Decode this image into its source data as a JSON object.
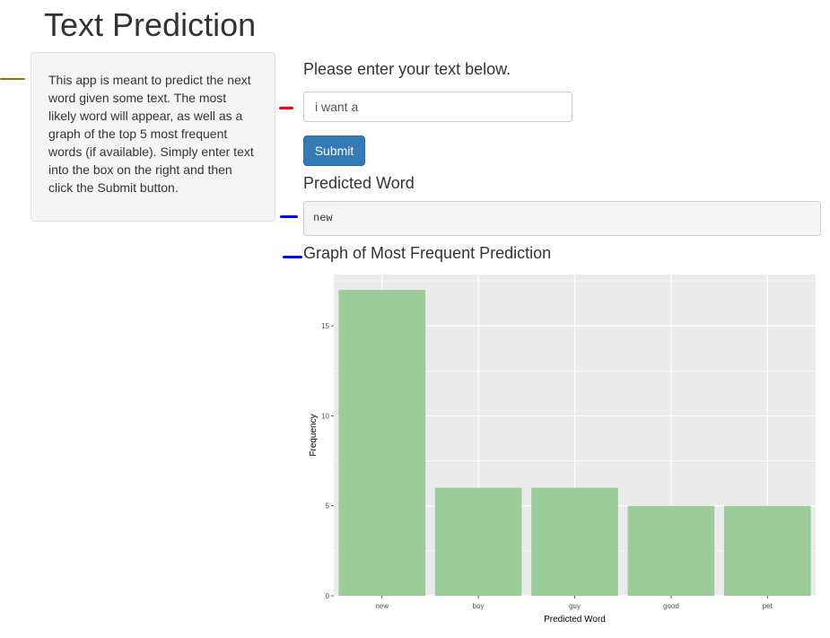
{
  "app": {
    "title": "Text Prediction"
  },
  "sidebar": {
    "description": "This app is meant to predict the next word given some text. The most likely word will appear, as well as a graph of the top 5 most frequent words (if available). Simply enter text into the box on the right and then click the Submit button."
  },
  "form": {
    "label": "Please enter your text below.",
    "input_value": "i want a",
    "submit_label": "Submit"
  },
  "prediction": {
    "label": "Predicted Word",
    "value": "new"
  },
  "graph": {
    "label": "Graph of Most Frequent Prediction"
  },
  "colors": {
    "bar_fill": "#9ccc99",
    "panel_bg": "#ebebeb",
    "grid": "#ffffff",
    "button": "#337ab7",
    "marker_olive": "#808000",
    "marker_red": "#ff0000",
    "marker_blue": "#0000ff"
  },
  "chart_data": {
    "type": "bar",
    "categories": [
      "new",
      "boy",
      "guy",
      "good",
      "pet"
    ],
    "values": [
      17,
      6,
      6,
      5,
      5
    ],
    "xlabel": "Predicted Word",
    "ylabel": "Frequency",
    "yticks": [
      0,
      5,
      10,
      15
    ],
    "ylim": [
      0,
      17.85
    ],
    "grid": true
  }
}
